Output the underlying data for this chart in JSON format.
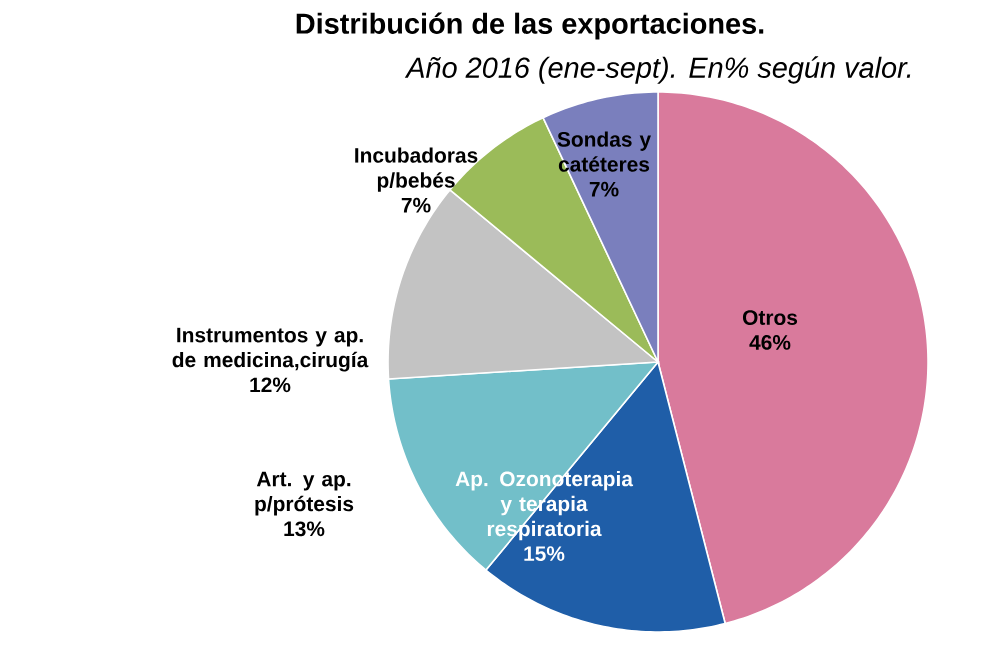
{
  "chart_data": {
    "type": "pie",
    "title": "Distribución de las exportaciones.",
    "subtitle": "Año 2016 (ene-sept). En% según valor.",
    "categories": [
      "Otros",
      "Ap. Ozonoterapia y terapia respiratoria",
      "Art. y ap. p/prótesis",
      "Instrumentos y ap. de medicina,cirugía",
      "Incubadoras p/bebés",
      "Sondas y catéteres"
    ],
    "values": [
      46,
      15,
      13,
      12,
      7,
      7
    ],
    "colors": [
      "#d97a9c",
      "#1f5ea8",
      "#72bfc9",
      "#c3c3c3",
      "#9bbb59",
      "#7a7fbd"
    ],
    "value_labels": [
      "46%",
      "15%",
      "13%",
      "12%",
      "7%",
      "7%"
    ]
  }
}
